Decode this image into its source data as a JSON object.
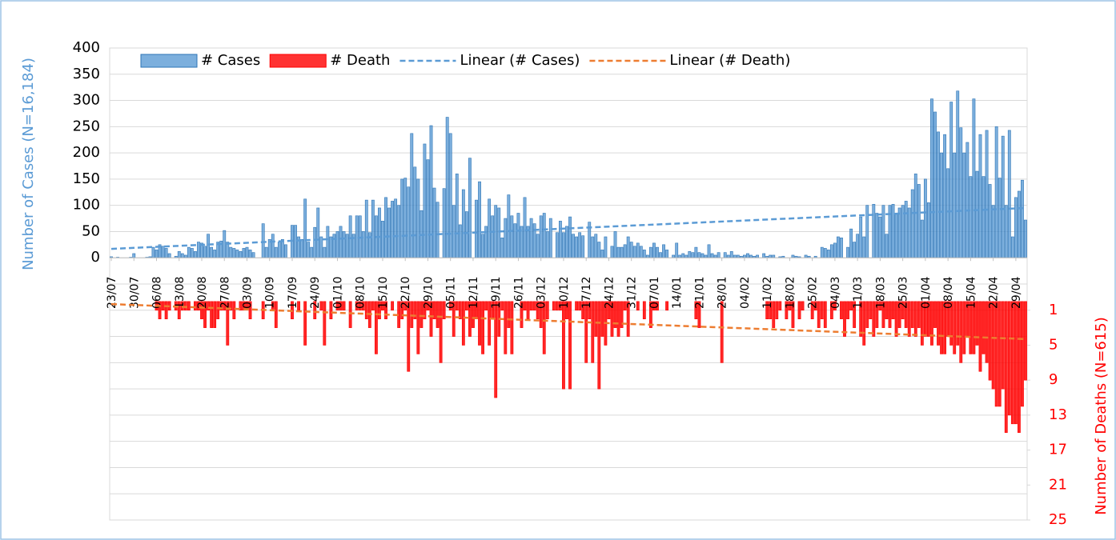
{
  "chart_data": {
    "type": "bar",
    "y_axis_label": "Number of Cases (N=16,184)",
    "y2_axis_label": "Number of Deaths (N=615)",
    "categories": [
      "23/07",
      null,
      null,
      null,
      null,
      null,
      null,
      "30/07",
      null,
      null,
      null,
      null,
      null,
      null,
      "06/08",
      null,
      null,
      null,
      null,
      null,
      null,
      "13/08",
      null,
      null,
      null,
      null,
      null,
      null,
      "20/08",
      null,
      null,
      null,
      null,
      null,
      null,
      "27/08",
      null,
      null,
      null,
      null,
      null,
      null,
      "03/09",
      null,
      null,
      null,
      null,
      null,
      null,
      "10/09",
      null,
      null,
      null,
      null,
      null,
      null,
      "17/09",
      null,
      null,
      null,
      null,
      null,
      null,
      "24/09",
      null,
      null,
      null,
      null,
      null,
      null,
      "01/10",
      null,
      null,
      null,
      null,
      null,
      null,
      "08/10",
      null,
      null,
      null,
      null,
      null,
      null,
      "15/10",
      null,
      null,
      null,
      null,
      null,
      null,
      "22/10",
      null,
      null,
      null,
      null,
      null,
      null,
      "29/10",
      null,
      null,
      null,
      null,
      null,
      null,
      "05/11",
      null,
      null,
      null,
      null,
      null,
      null,
      "12/11",
      null,
      null,
      null,
      null,
      null,
      null,
      "19/11",
      null,
      null,
      null,
      null,
      null,
      null,
      "26/11",
      null,
      null,
      null,
      null,
      null,
      null,
      "03/12",
      null,
      null,
      null,
      null,
      null,
      null,
      "10/12",
      null,
      null,
      null,
      null,
      null,
      null,
      "17/12",
      null,
      null,
      null,
      null,
      null,
      null,
      "24/12",
      null,
      null,
      null,
      null,
      null,
      null,
      "31/12",
      null,
      null,
      null,
      null,
      null,
      null,
      "07/01",
      null,
      null,
      null,
      null,
      null,
      null,
      "14/01",
      null,
      null,
      null,
      null,
      null,
      null,
      "21/01",
      null,
      null,
      null,
      null,
      null,
      null,
      "28/01",
      null,
      null,
      null,
      null,
      null,
      null,
      "04/02",
      null,
      null,
      null,
      null,
      null,
      null,
      "11/02",
      null,
      null,
      null,
      null,
      null,
      null,
      "18/02",
      null,
      null,
      null,
      null,
      null,
      null,
      "25/02",
      null,
      null,
      null,
      null,
      null,
      null,
      "04/03",
      null,
      null,
      null,
      null,
      null,
      null,
      "11/03",
      null,
      null,
      null,
      null,
      null,
      null,
      "18/03",
      null,
      null,
      null,
      null,
      null,
      null,
      "25/03",
      null,
      null,
      null,
      null,
      null,
      null,
      "01/04",
      null,
      null,
      null,
      null,
      null,
      null,
      "08/04",
      null,
      null,
      null,
      null,
      null,
      null,
      "15/04",
      null,
      null,
      null,
      null,
      null,
      null,
      "22/04",
      null,
      null,
      null,
      null,
      null,
      null,
      "29/04",
      null,
      null,
      null
    ],
    "series": [
      {
        "name": "# Cases",
        "color": "#5b9bd5",
        "values": [
          2,
          0,
          1,
          0,
          0,
          0,
          1,
          8,
          0,
          0,
          0,
          1,
          2,
          20,
          15,
          25,
          22,
          18,
          8,
          0,
          3,
          12,
          8,
          5,
          20,
          18,
          12,
          30,
          28,
          22,
          45,
          20,
          15,
          30,
          32,
          52,
          30,
          20,
          18,
          15,
          12,
          18,
          20,
          15,
          10,
          0,
          0,
          65,
          20,
          35,
          45,
          20,
          30,
          35,
          25,
          0,
          62,
          62,
          40,
          35,
          112,
          30,
          20,
          58,
          95,
          40,
          20,
          60,
          40,
          45,
          50,
          60,
          50,
          45,
          80,
          45,
          80,
          80,
          50,
          110,
          48,
          110,
          80,
          95,
          70,
          115,
          95,
          108,
          112,
          100,
          150,
          152,
          135,
          237,
          173,
          150,
          90,
          217,
          187,
          252,
          133,
          106,
          0,
          132,
          268,
          237,
          100,
          160,
          63,
          130,
          88,
          190,
          0,
          110,
          145,
          45,
          60,
          112,
          80,
          100,
          95,
          38,
          75,
          120,
          80,
          65,
          85,
          60,
          115,
          60,
          75,
          65,
          45,
          80,
          85,
          50,
          75,
          0,
          48,
          70,
          48,
          60,
          78,
          45,
          40,
          48,
          42,
          0,
          68,
          40,
          45,
          30,
          15,
          40,
          0,
          22,
          50,
          20,
          20,
          25,
          40,
          30,
          22,
          28,
          22,
          15,
          5,
          20,
          28,
          20,
          10,
          25,
          15,
          0,
          5,
          28,
          5,
          8,
          5,
          12,
          10,
          20,
          10,
          8,
          5,
          25,
          8,
          5,
          10,
          0,
          10,
          5,
          12,
          5,
          5,
          3,
          5,
          8,
          5,
          3,
          5,
          0,
          8,
          3,
          5,
          5,
          0,
          2,
          3,
          0,
          0,
          5,
          3,
          2,
          0,
          5,
          3,
          0,
          3,
          0,
          20,
          18,
          15,
          25,
          28,
          40,
          38,
          0,
          20,
          55,
          30,
          45,
          78,
          40,
          100,
          0,
          102,
          85,
          78,
          100,
          45,
          100,
          102,
          85,
          95,
          100,
          108,
          95,
          130,
          160,
          140,
          72,
          150,
          105,
          303,
          278,
          240,
          200,
          235,
          170,
          297,
          200,
          318,
          248,
          200,
          220,
          155,
          303,
          165,
          235,
          155,
          243,
          140,
          100,
          250,
          152,
          232,
          100,
          243,
          40,
          115,
          127,
          148,
          72
        ]
      },
      {
        "name": "# Death",
        "color": "#ff0000",
        "axis": "y2",
        "values": [
          0,
          0,
          0,
          0,
          0,
          0,
          0,
          0,
          0,
          0,
          0,
          0,
          0,
          0,
          1,
          2,
          1,
          2,
          1,
          0,
          1,
          2,
          1,
          1,
          1,
          0,
          1,
          1,
          2,
          3,
          1,
          3,
          3,
          2,
          1,
          1,
          5,
          1,
          2,
          0,
          1,
          1,
          1,
          2,
          0,
          0,
          0,
          2,
          0,
          0,
          1,
          3,
          0,
          0,
          0,
          0,
          2,
          0,
          1,
          0,
          5,
          0,
          0,
          2,
          0,
          1,
          5,
          0,
          2,
          0,
          1,
          1,
          1,
          0,
          3,
          0,
          1,
          1,
          1,
          2,
          3,
          1,
          6,
          2,
          1,
          2,
          0,
          1,
          0,
          3,
          2,
          1,
          8,
          3,
          2,
          6,
          3,
          2,
          1,
          4,
          2,
          3,
          7,
          2,
          0,
          1,
          4,
          1,
          2,
          5,
          1,
          4,
          3,
          2,
          5,
          6,
          1,
          5,
          2,
          11,
          4,
          1,
          6,
          3,
          6,
          0,
          0,
          3,
          1,
          2,
          1,
          1,
          2,
          3,
          6,
          2,
          0,
          1,
          1,
          1,
          10,
          2,
          10,
          0,
          1,
          1,
          2,
          7,
          2,
          7,
          4,
          10,
          4,
          5,
          2,
          4,
          3,
          4,
          3,
          1,
          4,
          0,
          0,
          1,
          0,
          2,
          0,
          3,
          1,
          1,
          0,
          0,
          1,
          0,
          0,
          0,
          0,
          0,
          0,
          0,
          0,
          2,
          3,
          0,
          0,
          0,
          0,
          0,
          0,
          7,
          0,
          0,
          0,
          0,
          0,
          0,
          0,
          0,
          0,
          0,
          0,
          0,
          0,
          2,
          2,
          3,
          2,
          1,
          0,
          2,
          1,
          3,
          0,
          2,
          1,
          0,
          0,
          2,
          1,
          3,
          2,
          3,
          0,
          2,
          1,
          0,
          2,
          4,
          2,
          1,
          3,
          0,
          4,
          5,
          3,
          2,
          4,
          3,
          1,
          3,
          2,
          3,
          2,
          4,
          3,
          2,
          3,
          4,
          3,
          4,
          3,
          5,
          4,
          4,
          5,
          3,
          5,
          6,
          6,
          4,
          5,
          6,
          5,
          7,
          6,
          4,
          6,
          6,
          5,
          8,
          6,
          7,
          9,
          10,
          12,
          12,
          10,
          15,
          13,
          14,
          14,
          15,
          12,
          9
        ]
      }
    ],
    "trendlines": [
      {
        "name": "Linear (# Cases)",
        "color": "#5b9bd5",
        "values": [
          17,
          95
        ]
      },
      {
        "name": "Linear (# Death)",
        "color": "#ed7d31",
        "axis": "y2",
        "values": [
          0.3,
          4.3
        ]
      }
    ],
    "ylim": [
      -500,
      400
    ],
    "yticks": [
      0,
      50,
      100,
      150,
      200,
      250,
      300,
      350,
      400
    ],
    "y2lim": [
      -29,
      25
    ],
    "y2ticks": [
      1,
      5,
      9,
      13,
      17,
      21,
      25
    ],
    "y2_reversed": true,
    "grid": true,
    "legend": "top"
  }
}
